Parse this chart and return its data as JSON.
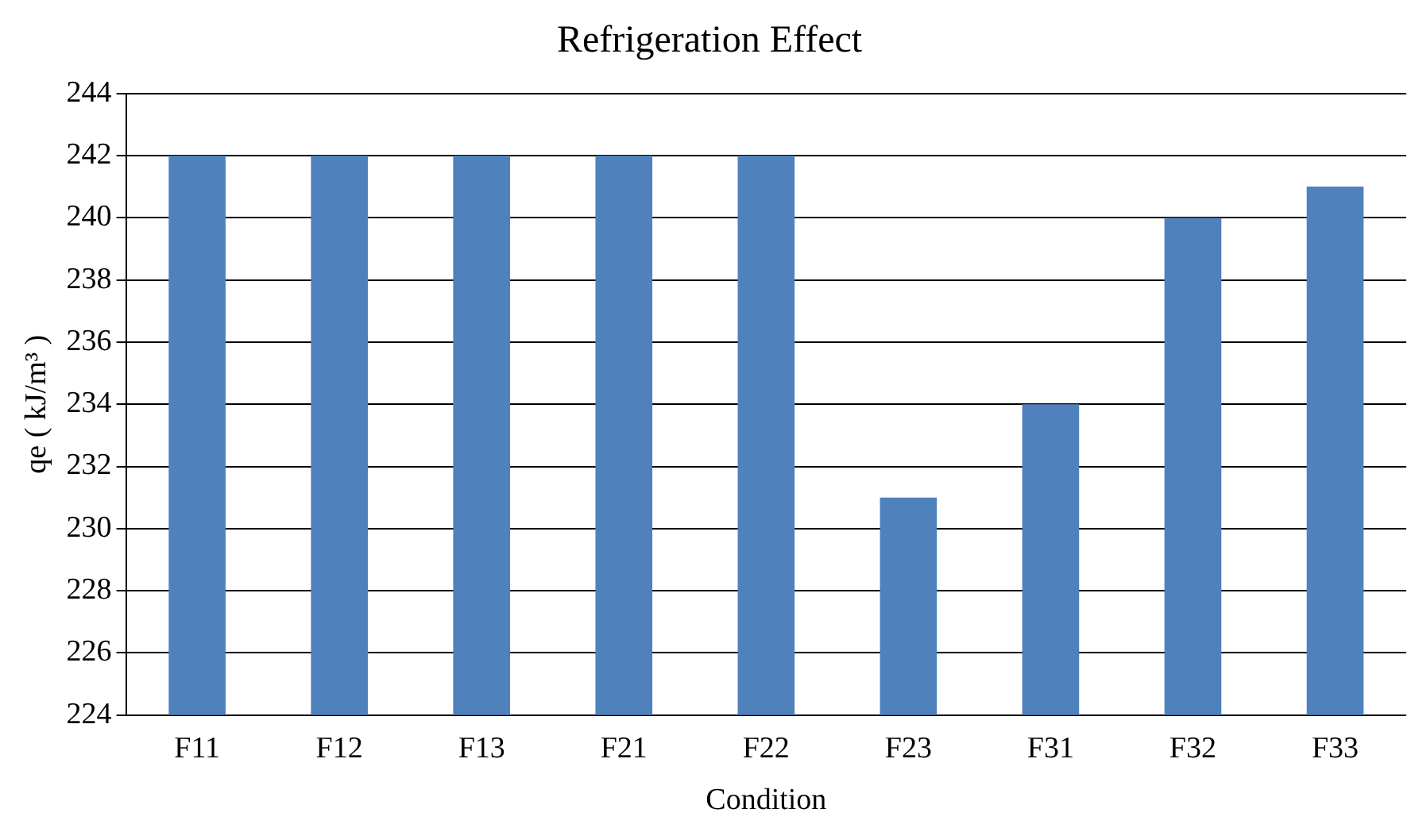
{
  "chart_data": {
    "type": "bar",
    "title": "Refrigeration Effect",
    "xlabel": "Condition",
    "ylabel": "qe ( kJ/m³ )",
    "categories": [
      "F11",
      "F12",
      "F13",
      "F21",
      "F22",
      "F23",
      "F31",
      "F32",
      "F33"
    ],
    "values": [
      242,
      242,
      242,
      242,
      242,
      231,
      234,
      240,
      241
    ],
    "color": "#4f81bd",
    "ylim": [
      224,
      244
    ],
    "yticks": [
      224,
      226,
      228,
      230,
      232,
      234,
      236,
      238,
      240,
      242,
      244
    ],
    "grid": "y"
  }
}
